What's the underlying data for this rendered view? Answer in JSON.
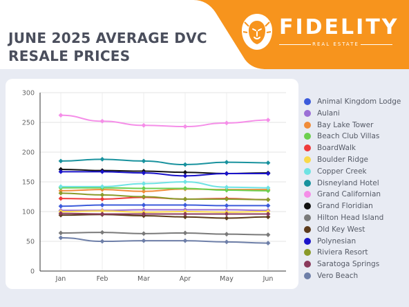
{
  "page": {
    "title": "JUNE 2025 AVERAGE DVC RESALE PRICES",
    "brand": {
      "name": "FIDELITY",
      "tagline": "REAL ESTATE",
      "accent_color": "#f7941d",
      "logo_icon": "lion-head-icon"
    }
  },
  "chart_data": {
    "type": "line",
    "title": "",
    "xlabel": "",
    "ylabel": "",
    "ylim": [
      0,
      300
    ],
    "yticks": [
      0,
      50,
      100,
      150,
      200,
      250,
      300
    ],
    "grid": true,
    "legend_position": "right",
    "categories": [
      "Jan",
      "Feb",
      "Mar",
      "Apr",
      "May",
      "Jun"
    ],
    "series": [
      {
        "name": "Animal Kingdom Lodge",
        "color": "#3b5bdb",
        "values": [
          109,
          111,
          111,
          111,
          110,
          110
        ]
      },
      {
        "name": "Aulani",
        "color": "#9b6fd6",
        "values": [
          102,
          102,
          103,
          103,
          103,
          102
        ]
      },
      {
        "name": "Bay Lake Tower",
        "color": "#f08c3a",
        "values": [
          135,
          137,
          134,
          138,
          137,
          137
        ]
      },
      {
        "name": "Beach Club Villas",
        "color": "#6ccf4f",
        "values": [
          140,
          140,
          139,
          139,
          136,
          135
        ]
      },
      {
        "name": "BoardWalk",
        "color": "#ef3b3b",
        "values": [
          122,
          121,
          124,
          121,
          122,
          120
        ]
      },
      {
        "name": "Boulder Ridge",
        "color": "#f9d94a",
        "values": [
          100,
          101,
          99,
          100,
          99,
          100
        ]
      },
      {
        "name": "Copper Creek",
        "color": "#6fe3e3",
        "values": [
          142,
          142,
          147,
          150,
          141,
          140
        ]
      },
      {
        "name": "Disneyland Hotel",
        "color": "#19929e",
        "values": [
          185,
          188,
          185,
          179,
          183,
          182
        ]
      },
      {
        "name": "Grand Californian",
        "color": "#f58ee8",
        "values": [
          262,
          252,
          245,
          243,
          249,
          254
        ]
      },
      {
        "name": "Grand Floridian",
        "color": "#111111",
        "values": [
          171,
          169,
          168,
          166,
          164,
          165
        ]
      },
      {
        "name": "Hilton Head Island",
        "color": "#7a7a7a",
        "values": [
          64,
          65,
          63,
          64,
          62,
          61
        ]
      },
      {
        "name": "Old Key West",
        "color": "#5c3b1c",
        "values": [
          94,
          95,
          93,
          91,
          89,
          91
        ]
      },
      {
        "name": "Polynesian",
        "color": "#1a13c9",
        "values": [
          167,
          167,
          165,
          160,
          164,
          164
        ]
      },
      {
        "name": "Riviera Resort",
        "color": "#8a9a2a",
        "values": [
          131,
          128,
          125,
          121,
          121,
          120
        ]
      },
      {
        "name": "Saratoga Springs",
        "color": "#8a3a5c",
        "values": [
          97,
          96,
          96,
          96,
          96,
          96
        ]
      },
      {
        "name": "Vero Beach",
        "color": "#6e7fa8",
        "values": [
          56,
          50,
          51,
          51,
          49,
          47
        ]
      }
    ]
  }
}
